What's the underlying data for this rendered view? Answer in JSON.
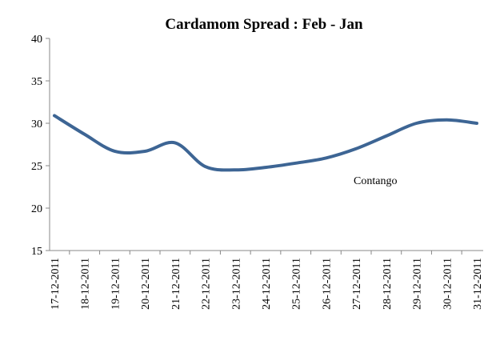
{
  "chart_data": {
    "type": "line",
    "title": "Cardamom Spread : Feb - Jan",
    "categories": [
      "17-12-2011",
      "18-12-2011",
      "19-12-2011",
      "20-12-2011",
      "21-12-2011",
      "22-12-2011",
      "23-12-2011",
      "24-12-2011",
      "25-12-2011",
      "26-12-2011",
      "27-12-2011",
      "28-12-2011",
      "29-12-2011",
      "30-12-2011",
      "31-12-2011"
    ],
    "values": [
      30.9,
      28.7,
      26.7,
      26.7,
      27.7,
      24.9,
      24.5,
      24.8,
      25.3,
      25.9,
      27.0,
      28.5,
      30.0,
      30.4,
      30.0
    ],
    "color": "#3d6594",
    "ylim": [
      15,
      40
    ],
    "yticks": [
      15,
      20,
      25,
      30,
      35,
      40
    ],
    "annotation": "Contango"
  }
}
